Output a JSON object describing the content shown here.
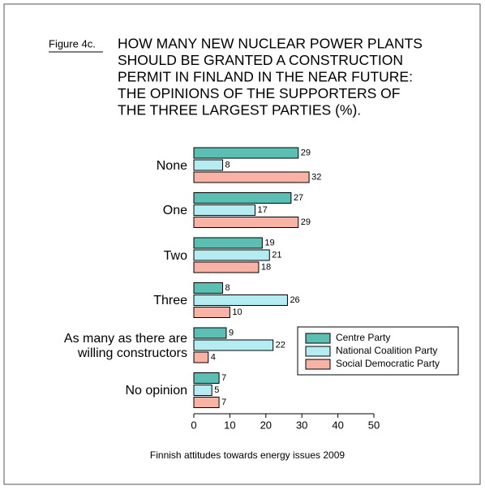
{
  "chart_data": {
    "type": "barh",
    "figure_label": "Figure 4c.",
    "title_lines": [
      "HOW MANY NEW NUCLEAR POWER PLANTS",
      "SHOULD BE GRANTED A CONSTRUCTION",
      "PERMIT IN FINLAND IN THE NEAR FUTURE:",
      "THE OPINIONS OF THE SUPPORTERS OF",
      "THE THREE LARGEST PARTIES (%)."
    ],
    "categories": [
      "None",
      "One",
      "Two",
      "Three",
      "As many as there are willing constructors",
      "No opinion"
    ],
    "series": [
      {
        "name": "Centre Party",
        "color": "#5cbfb3",
        "values": [
          29,
          27,
          19,
          8,
          9,
          7
        ]
      },
      {
        "name": "National Coalition Party",
        "color": "#b5ecf2",
        "values": [
          8,
          17,
          21,
          26,
          22,
          5
        ]
      },
      {
        "name": "Social Democratic Party",
        "color": "#f8b2a6",
        "values": [
          32,
          29,
          18,
          10,
          4,
          7
        ]
      }
    ],
    "xlim": [
      0,
      50
    ],
    "xticks": [
      0,
      10,
      20,
      30,
      40,
      50
    ],
    "source": "Finnish attitudes towards energy issues 2009"
  }
}
